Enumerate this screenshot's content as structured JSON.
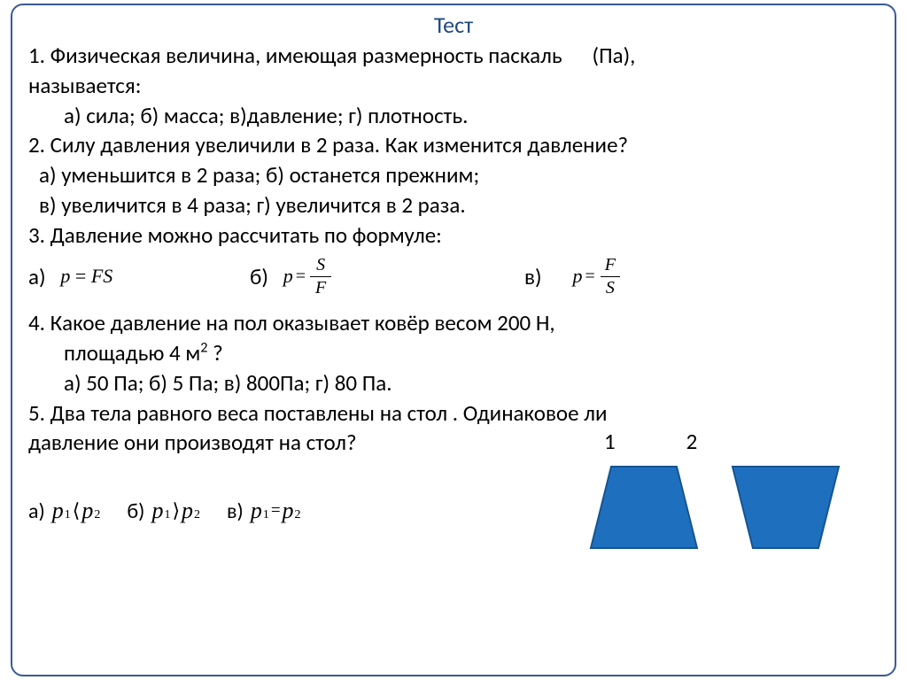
{
  "title": "Тест",
  "colors": {
    "title": "#1f497d",
    "text": "#000000",
    "border": "#3a5a9a",
    "shape_fill": "#1f6fbf",
    "shape_stroke": "#15548f",
    "background": "#ffffff"
  },
  "typography": {
    "body_fontsize": 25,
    "title_fontsize": 26,
    "formula_fontsize": 22,
    "font_family": "Calibri"
  },
  "q1": {
    "text_a": "1. Физическая величина, имеющая размерность паскаль",
    "text_b": "(Па),",
    "text_c": "называется:",
    "options": "а) сила;  б) масса;  в)давление;  г) плотность."
  },
  "q2": {
    "text": "2. Силу давления увеличили в 2 раза. Как изменится  давление?",
    "opt1": "а) уменьшится в 2 раза;  б) останется прежним;",
    "opt2": "в) увеличится в 4 раза;  г) увеличится в 2 раза."
  },
  "q3": {
    "text": "3. Давление можно рассчитать по формуле:",
    "labels": {
      "a": "а)",
      "b": "б)",
      "c": "в)"
    },
    "formulas": {
      "a": {
        "lhs": "p",
        "rhs": "FS"
      },
      "b": {
        "lhs": "p",
        "num": "S",
        "den": "F"
      },
      "c": {
        "lhs": "p",
        "num": "F",
        "den": "S"
      }
    }
  },
  "q4": {
    "line1": "4. Какое давление на пол оказывает ковёр весом  200 Н,",
    "line2a": "площадью  4 м",
    "line2b": " ?",
    "options": "а) 50 Па;  б) 5 Па;  в) 800Па;  г) 80 Па."
  },
  "q5": {
    "line1": "5. Два тела равного веса поставлены на стол . Одинаковое ли",
    "line2": "давление они производят на стол?",
    "labels": {
      "s1": "1",
      "s2": "2"
    },
    "answers": {
      "a": {
        "label": "а)",
        "p1": "p",
        "s1": "1",
        "op": "⟨",
        "p2": "p",
        "s2": "2"
      },
      "b": {
        "label": "б)",
        "p1": "p",
        "s1": "1",
        "op": "⟩",
        "p2": "p",
        "s2": "2"
      },
      "c": {
        "label": "в)",
        "p1": "p",
        "s1": "1",
        "op": "=",
        "p2": "p",
        "s2": "2"
      }
    },
    "shapes": {
      "shape1": {
        "type": "trapezoid-wide-bottom",
        "top_w": 74,
        "bot_w": 120,
        "h": 92
      },
      "shape2": {
        "type": "trapezoid-wide-top",
        "top_w": 120,
        "bot_w": 74,
        "h": 92
      },
      "fill": "#1f6fbf",
      "stroke": "#15548f",
      "stroke_width": 2
    }
  }
}
